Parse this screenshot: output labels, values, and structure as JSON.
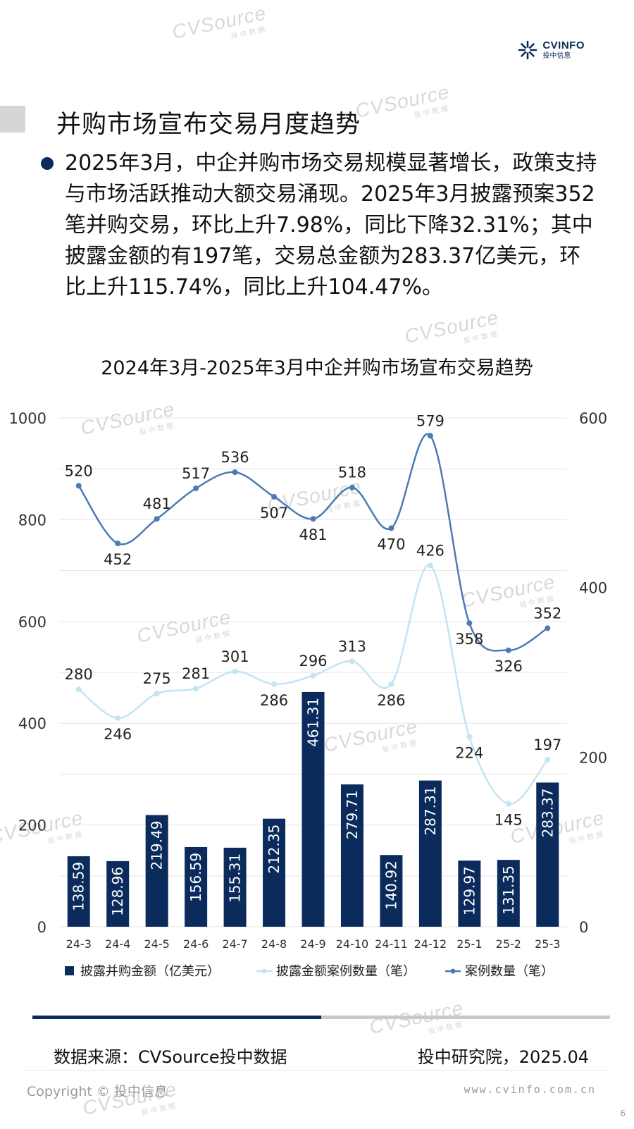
{
  "logo": {
    "en": "CVINFO",
    "cn": "投中信息"
  },
  "header": {
    "title": "并购市场宣布交易月度趋势"
  },
  "summary": {
    "text": "2025年3月，中企并购市场交易规模显著增长，政策支持与市场活跃推动大额交易涌现。2025年3月披露预案352笔并购交易，环比上升7.98%，同比下降32.31%；其中披露金额的有197笔，交易总金额为283.37亿美元，环比上升115.74%，同比上升104.47%。"
  },
  "watermark": {
    "en": "CVSource",
    "cn": "投中数据"
  },
  "colors": {
    "bar": "#0b2b5c",
    "line_amount_cases": "#c3e4f3",
    "line_cases": "#4c7ab5",
    "grid": "#e6e6e6",
    "brand": "#0b2b5c"
  },
  "chart_data": {
    "type": "bar",
    "title": "2024年3月-2025年3月中企并购市场宣布交易趋势",
    "categories": [
      "24-3",
      "24-4",
      "24-5",
      "24-6",
      "24-7",
      "24-8",
      "24-9",
      "24-10",
      "24-11",
      "24-12",
      "25-1",
      "25-2",
      "25-3"
    ],
    "series": [
      {
        "name": "披露并购金额（亿美元）",
        "type": "bar",
        "axis": "left",
        "values": [
          138.59,
          128.96,
          219.49,
          156.59,
          155.31,
          212.35,
          461.31,
          279.71,
          140.92,
          287.31,
          129.97,
          131.35,
          283.37
        ],
        "labels": [
          "138.59",
          "128.96",
          "219.49",
          "156.59",
          "155.31",
          "212.35",
          "461.31",
          "279.71",
          "140.92",
          "287.31",
          "129.97",
          "131.35",
          "283.37"
        ]
      },
      {
        "name": "披露金额案例数量（笔）",
        "type": "line",
        "axis": "right",
        "values": [
          280,
          246,
          275,
          281,
          301,
          286,
          296,
          313,
          286,
          426,
          224,
          145,
          197
        ]
      },
      {
        "name": "案例数量（笔）",
        "type": "line",
        "axis": "right",
        "values": [
          520,
          452,
          481,
          517,
          536,
          507,
          481,
          518,
          470,
          579,
          358,
          326,
          352
        ]
      }
    ],
    "y_left": {
      "min": 0,
      "max": 1000,
      "ticks": [
        0,
        200,
        400,
        600,
        800,
        1000
      ]
    },
    "y_right": {
      "min": 0,
      "max": 600,
      "ticks": [
        0,
        200,
        400,
        600
      ]
    },
    "grid": true,
    "legend_position": "bottom"
  },
  "footer": {
    "source": "数据来源：CVSource投中数据",
    "institute": "投中研究院，2025.04",
    "copyright": "Copyright © 投中信息",
    "website": "www.cvinfo.com.cn",
    "page": "6"
  }
}
